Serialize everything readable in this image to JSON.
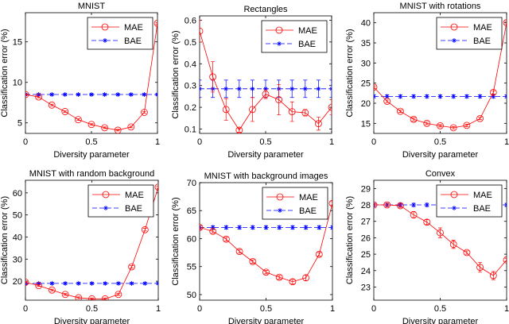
{
  "colors": {
    "MAE": "#ff0000",
    "BAE": "#0000ff"
  },
  "chart_data": [
    {
      "type": "line",
      "title": "MNIST",
      "xlabel": "Diversity parameter",
      "ylabel": "Classification error (%)",
      "xlim": [
        0,
        1
      ],
      "ylim": [
        3.7,
        18.6
      ],
      "xticks": [
        0,
        0.5,
        1
      ],
      "xtick_labels": [
        "0",
        "0.5",
        "1"
      ],
      "yticks": [
        5,
        10,
        15
      ],
      "ytick_labels": [
        "5",
        "10",
        "15"
      ],
      "legend": "top-right",
      "grid": false,
      "x": [
        0,
        0.1,
        0.2,
        0.3,
        0.4,
        0.5,
        0.6,
        0.7,
        0.8,
        0.9,
        1
      ],
      "series": [
        {
          "name": "MAE",
          "values": [
            8.5,
            8.2,
            7.2,
            6.4,
            5.4,
            4.8,
            4.4,
            4.1,
            4.5,
            6.3,
            17.3
          ],
          "errors": [
            0.1,
            0.1,
            0.1,
            0.1,
            0.1,
            0.1,
            0.1,
            0.1,
            0.1,
            0.1,
            0.1
          ]
        },
        {
          "name": "BAE",
          "values": [
            8.5,
            8.5,
            8.5,
            8.5,
            8.5,
            8.5,
            8.5,
            8.5,
            8.5,
            8.5,
            8.5
          ],
          "errors": [
            0.1,
            0.1,
            0.1,
            0.1,
            0.1,
            0.1,
            0.1,
            0.1,
            0.1,
            0.1,
            0.1
          ]
        }
      ]
    },
    {
      "type": "line",
      "title": "Rectangles",
      "xlabel": "Diversity parameter",
      "ylabel": "Classification error (%)",
      "xlim": [
        0,
        1
      ],
      "ylim": [
        0.08,
        0.62
      ],
      "xticks": [
        0,
        0.5,
        1
      ],
      "xtick_labels": [
        "0",
        "0.5",
        "1"
      ],
      "yticks": [
        0.1,
        0.2,
        0.3,
        0.4,
        0.5,
        0.6
      ],
      "ytick_labels": [
        "0.1",
        "0.2",
        "0.3",
        "0.4",
        "0.5",
        "0.6"
      ],
      "legend": "top-right",
      "grid": false,
      "x": [
        0,
        0.1,
        0.2,
        0.3,
        0.4,
        0.5,
        0.6,
        0.7,
        0.8,
        0.9,
        1
      ],
      "series": [
        {
          "name": "MAE",
          "values": [
            0.55,
            0.34,
            0.19,
            0.095,
            0.19,
            0.26,
            0.235,
            0.18,
            0.175,
            0.125,
            0.2
          ],
          "errors": [
            0.05,
            0.07,
            0.05,
            0.01,
            0.055,
            0.02,
            0.07,
            0.045,
            0.015,
            0.03,
            0.035
          ]
        },
        {
          "name": "BAE",
          "values": [
            0.285,
            0.285,
            0.285,
            0.285,
            0.285,
            0.285,
            0.285,
            0.285,
            0.285,
            0.285,
            0.285
          ],
          "errors": [
            0.04,
            0.04,
            0.04,
            0.04,
            0.04,
            0.04,
            0.04,
            0.04,
            0.04,
            0.04,
            0.04
          ]
        }
      ]
    },
    {
      "type": "line",
      "title": "MNIST with rotations",
      "xlabel": "Diversity parameter",
      "ylabel": "Classification error (%)",
      "xlim": [
        0,
        1
      ],
      "ylim": [
        12.5,
        42.5
      ],
      "xticks": [
        0,
        0.5,
        1
      ],
      "xtick_labels": [
        "0",
        "0.5",
        "1"
      ],
      "yticks": [
        15,
        20,
        25,
        30,
        35,
        40
      ],
      "ytick_labels": [
        "15",
        "20",
        "25",
        "30",
        "35",
        "40"
      ],
      "legend": "top-right",
      "grid": false,
      "x": [
        0,
        0.1,
        0.2,
        0.3,
        0.4,
        0.5,
        0.6,
        0.7,
        0.8,
        0.9,
        1
      ],
      "series": [
        {
          "name": "MAE",
          "values": [
            24,
            20.5,
            18,
            16,
            15,
            14.4,
            13.9,
            14.5,
            16.2,
            22.7,
            40
          ],
          "errors": [
            0.3,
            0.3,
            0.3,
            0.4,
            0.3,
            0.3,
            0.3,
            0.3,
            0.3,
            0.4,
            0.3
          ]
        },
        {
          "name": "BAE",
          "values": [
            21.7,
            21.7,
            21.7,
            21.7,
            21.7,
            21.7,
            21.7,
            21.7,
            21.7,
            21.7,
            21.7
          ],
          "errors": [
            0.4,
            0.4,
            0.4,
            0.4,
            0.4,
            0.4,
            0.4,
            0.4,
            0.4,
            0.4,
            0.4
          ]
        }
      ]
    },
    {
      "type": "line",
      "title": "MNIST with random background",
      "xlabel": "Diversity parameter",
      "ylabel": "Classification error (%)",
      "xlim": [
        0,
        1
      ],
      "ylim": [
        11.4,
        65.7
      ],
      "xticks": [
        0,
        0.5,
        1
      ],
      "xtick_labels": [
        "0",
        "0.5",
        "1"
      ],
      "yticks": [
        20,
        30,
        40,
        50,
        60
      ],
      "ytick_labels": [
        "20",
        "30",
        "40",
        "50",
        "60"
      ],
      "legend": "top-right",
      "grid": false,
      "x": [
        0,
        0.1,
        0.2,
        0.3,
        0.4,
        0.5,
        0.6,
        0.7,
        0.8,
        0.9,
        1
      ],
      "series": [
        {
          "name": "MAE",
          "values": [
            19.5,
            18,
            16,
            14,
            12.5,
            12,
            12,
            14,
            26.5,
            43.3,
            62.6
          ],
          "errors": [
            0.4,
            0.4,
            0.4,
            0.4,
            0.4,
            0.4,
            0.4,
            0.4,
            0.5,
            0.6,
            0.5
          ]
        },
        {
          "name": "BAE",
          "values": [
            19,
            19,
            19,
            19,
            19,
            19,
            19,
            19,
            19,
            19,
            19
          ],
          "errors": [
            0.4,
            0.4,
            0.4,
            0.4,
            0.4,
            0.4,
            0.4,
            0.4,
            0.4,
            0.4,
            0.4
          ]
        }
      ]
    },
    {
      "type": "line",
      "title": "MNIST with background images",
      "xlabel": "Diversity parameter",
      "ylabel": "Classification error (%)",
      "xlim": [
        0,
        1
      ],
      "ylim": [
        49,
        70
      ],
      "xticks": [
        0,
        0.5,
        1
      ],
      "xtick_labels": [
        "0",
        "0.5",
        "1"
      ],
      "yticks": [
        50,
        55,
        60,
        65,
        70
      ],
      "ytick_labels": [
        "50",
        "55",
        "60",
        "65",
        "70"
      ],
      "legend": "top-right",
      "grid": false,
      "x": [
        0,
        0.1,
        0.2,
        0.3,
        0.4,
        0.5,
        0.6,
        0.7,
        0.8,
        0.9,
        1
      ],
      "series": [
        {
          "name": "MAE",
          "values": [
            62,
            61.3,
            59.9,
            57.7,
            55.9,
            54,
            53.1,
            52.3,
            53,
            57.2,
            66.3
          ],
          "errors": [
            0.3,
            0.3,
            0.3,
            0.3,
            0.3,
            0.3,
            0.3,
            0.4,
            0.5,
            0.3,
            0.3
          ]
        },
        {
          "name": "BAE",
          "values": [
            62,
            62,
            62,
            62,
            62,
            62,
            62,
            62,
            62,
            62,
            62
          ],
          "errors": [
            0.3,
            0.3,
            0.3,
            0.3,
            0.3,
            0.3,
            0.3,
            0.3,
            0.3,
            0.3,
            0.3
          ]
        }
      ]
    },
    {
      "type": "line",
      "title": "Convex",
      "xlabel": "Diversity parameter",
      "ylabel": "Classification error (%)",
      "xlim": [
        0,
        1
      ],
      "ylim": [
        22.2,
        29.5
      ],
      "xticks": [
        0,
        0.5,
        1
      ],
      "xtick_labels": [
        "0",
        "0.5",
        "1"
      ],
      "yticks": [
        23,
        24,
        25,
        26,
        27,
        28,
        29
      ],
      "ytick_labels": [
        "23",
        "24",
        "25",
        "26",
        "27",
        "28",
        "29"
      ],
      "legend": "top-right",
      "grid": false,
      "x": [
        0,
        0.1,
        0.2,
        0.3,
        0.4,
        0.5,
        0.6,
        0.7,
        0.8,
        0.9,
        1
      ],
      "series": [
        {
          "name": "MAE",
          "values": [
            28,
            28,
            27.95,
            27.4,
            26.95,
            26.3,
            25.6,
            25.1,
            24.2,
            23.7,
            24.65
          ],
          "errors": [
            0.08,
            0.1,
            0.1,
            0.2,
            0.15,
            0.3,
            0.25,
            0.1,
            0.3,
            0.25,
            0.1
          ]
        },
        {
          "name": "BAE",
          "values": [
            28,
            28,
            28,
            28,
            28,
            28,
            28,
            28,
            28,
            28,
            28
          ],
          "errors": [
            0.1,
            0.1,
            0.1,
            0.1,
            0.1,
            0.1,
            0.1,
            0.1,
            0.1,
            0.1,
            0.1
          ]
        }
      ]
    }
  ]
}
